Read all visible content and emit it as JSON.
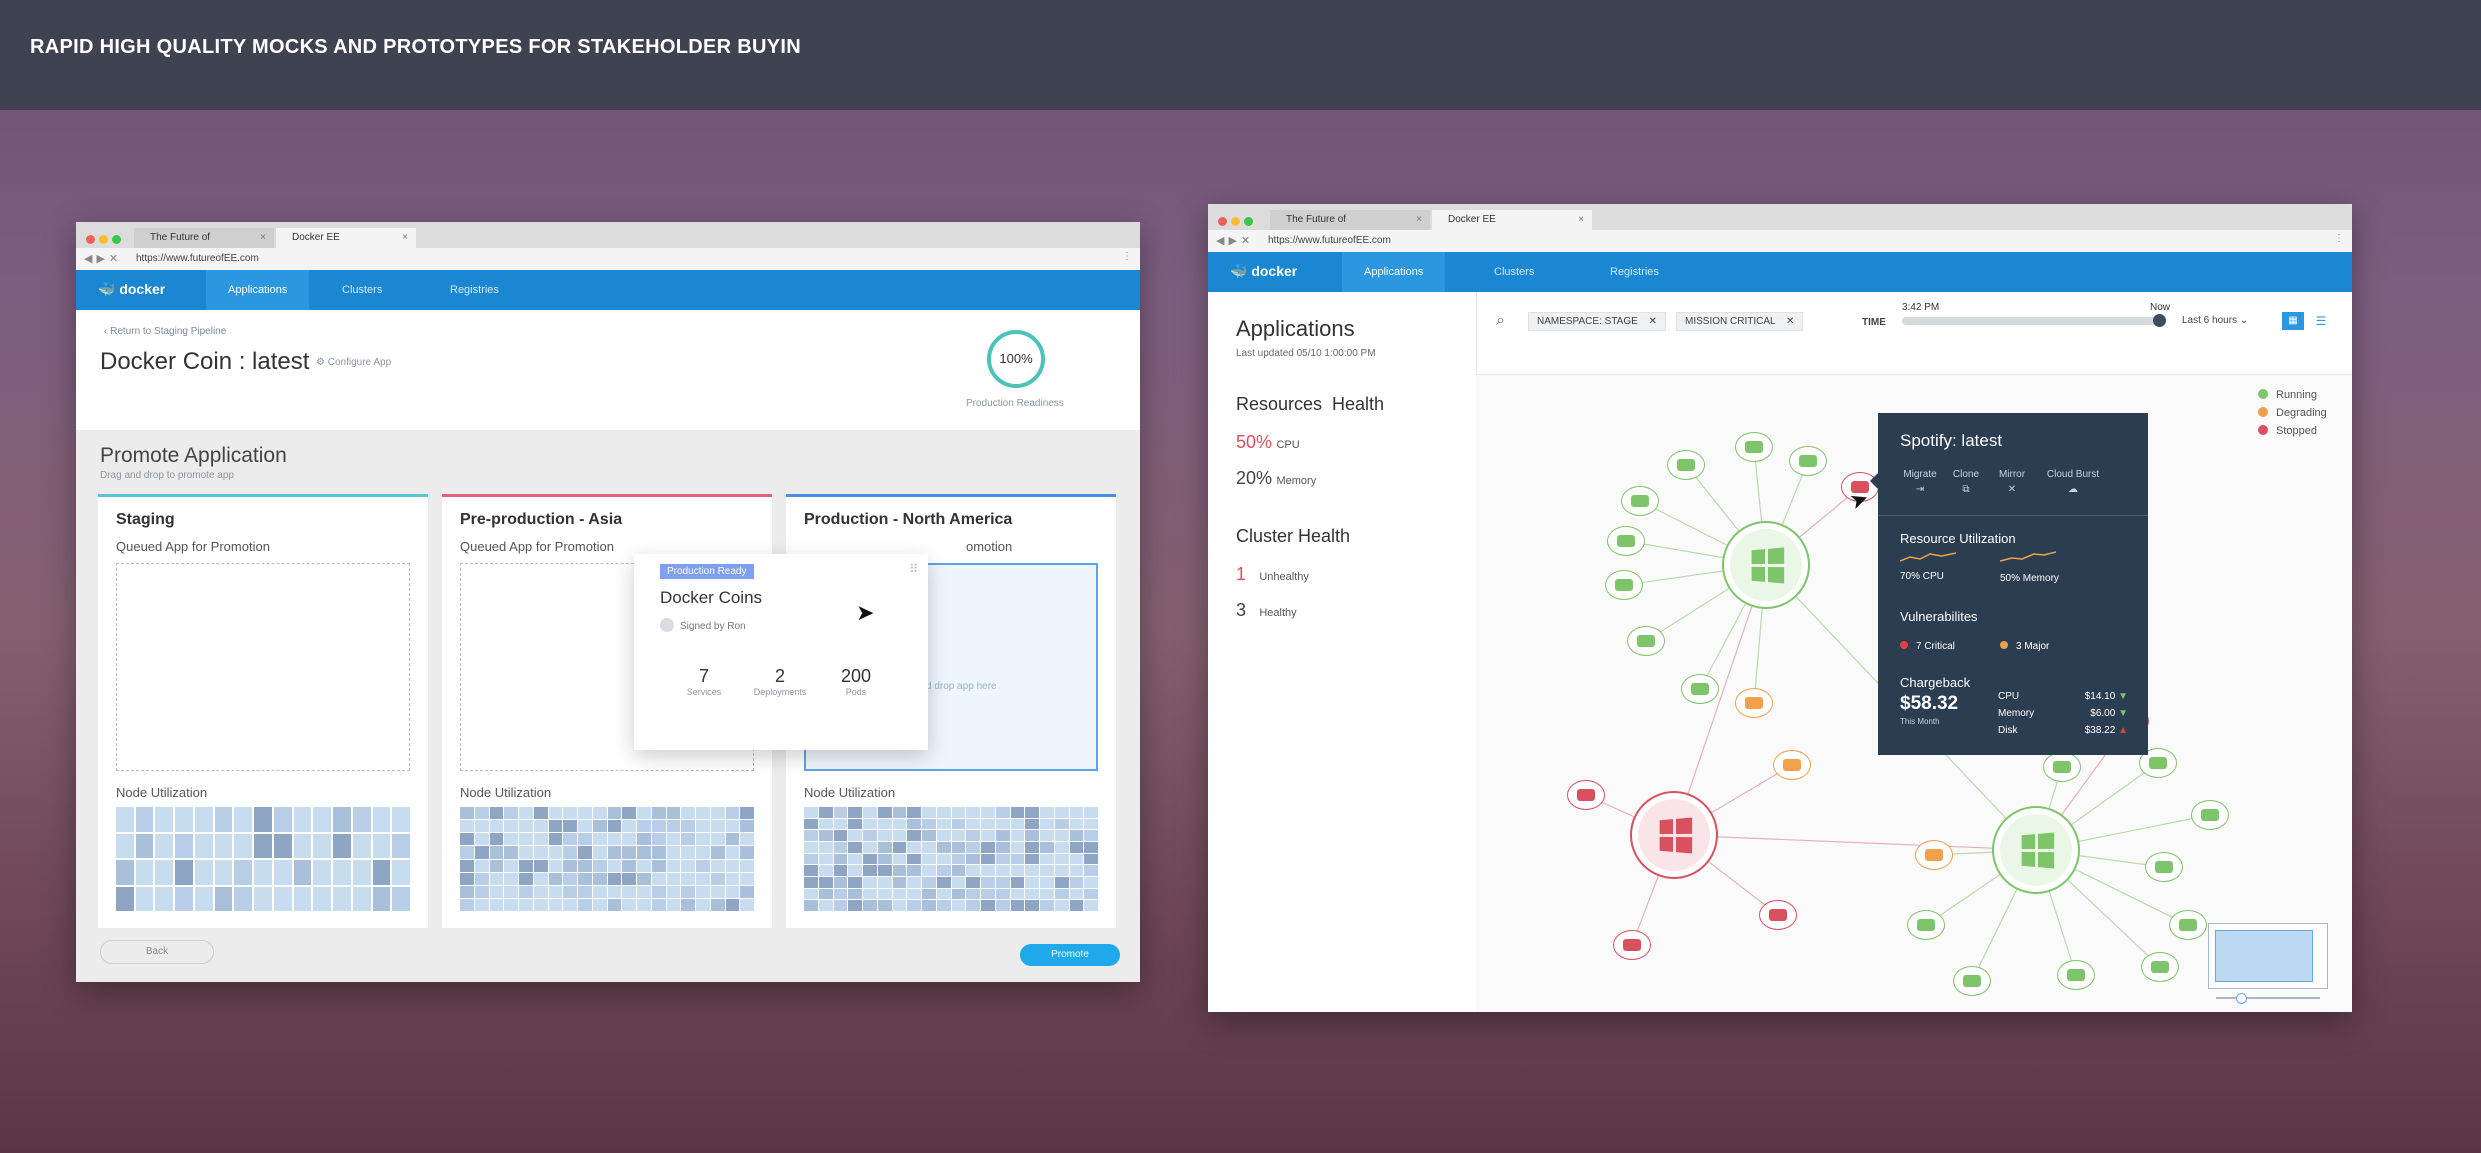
{
  "headline": "RAPID HIGH QUALITY MOCKS AND PROTOTYPES FOR STAKEHOLDER BUYIN",
  "left": {
    "tabs": [
      "The Future of",
      "Docker EE"
    ],
    "url": "https://www.futureofEE.com",
    "brand": "docker",
    "nav": [
      "Applications",
      "Clusters",
      "Registries"
    ],
    "breadcrumb": "Return to Staging Pipeline",
    "app_title": "Docker Coin : latest",
    "configure": "Configure App",
    "readiness_value": "100%",
    "readiness_label": "Production Readiness",
    "section_title": "Promote Application",
    "section_sub": "Drag and drop to promote app",
    "columns": [
      {
        "title": "Staging",
        "queued": "Queued App for Promotion",
        "node": "Node Utilization",
        "accent": "#5dc3d3"
      },
      {
        "title": "Pre-production - Asia",
        "queued": "Queued App for Promotion",
        "node": "Node Utilization",
        "accent": "#e2607e"
      },
      {
        "title": "Production - North America",
        "queued": "omotion",
        "node": "Node Utilization",
        "accent": "#4c8de0",
        "drop": "d drop app here"
      }
    ],
    "card": {
      "badge": "Production Ready",
      "name": "Docker Coins",
      "signed": "Signed by Ron",
      "stats": [
        {
          "value": "7",
          "label": "Services"
        },
        {
          "value": "2",
          "label": "Deployments"
        },
        {
          "value": "200",
          "label": "Pods"
        }
      ]
    },
    "back": "Back",
    "promote": "Promote"
  },
  "right": {
    "tabs": [
      "The Future of",
      "Docker EE"
    ],
    "url": "https://www.futureofEE.com",
    "brand": "docker",
    "nav": [
      "Applications",
      "Clusters",
      "Registries"
    ],
    "page_title": "Applications",
    "last_updated": "Last updated 05/10 1:00:00 PM",
    "resources_title": "Resources  Health",
    "cpu_value": "50%",
    "cpu_label": "CPU",
    "mem_value": "20%",
    "mem_label": "Memory",
    "cluster_title": "Cluster Health",
    "unhealthy_value": "1",
    "unhealthy_label": "Unhealthy",
    "healthy_value": "3",
    "healthy_label": "Healthy",
    "filters": [
      "NAMESPACE: STAGE",
      "MISSION CRITICAL"
    ],
    "time_label": "TIME",
    "time_start": "3:42 PM",
    "time_end": "Now",
    "range": "Last 6 hours",
    "legend": [
      {
        "label": "Running",
        "color": "#7ec46a"
      },
      {
        "label": "Degrading",
        "color": "#f2a04a"
      },
      {
        "label": "Stopped",
        "color": "#d9505f"
      }
    ],
    "tooltip": {
      "title": "Spotify: latest",
      "actions": [
        "Migrate",
        "Clone",
        "Mirror",
        "Cloud Burst"
      ],
      "resource_title": "Resource Utilization",
      "cpu": "70% CPU",
      "memory": "50% Memory",
      "vuln_title": "Vulnerabilites",
      "critical": "7 Critical",
      "major": "3 Major",
      "charge_title": "Chargeback",
      "charge_total": "$58.32",
      "charge_period": "This Month",
      "rows": [
        {
          "label": "CPU",
          "value": "$14.10"
        },
        {
          "label": "Memory",
          "value": "$6.00"
        },
        {
          "label": "Disk",
          "value": "$38.22"
        }
      ]
    }
  }
}
